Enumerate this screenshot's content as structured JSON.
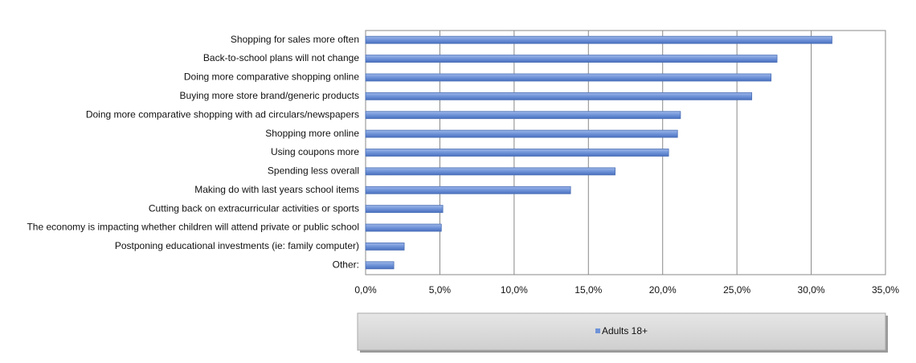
{
  "chart_data": {
    "type": "bar",
    "orientation": "horizontal",
    "categories": [
      "Shopping for sales more often",
      "Back-to-school plans will not change",
      "Doing more comparative shopping online",
      "Buying more store brand/generic products",
      "Doing more comparative shopping with ad circulars/newspapers",
      "Shopping more online",
      "Using coupons more",
      "Spending less overall",
      "Making do with last years school items",
      "Cutting back on extracurricular activities or sports",
      "The economy is impacting whether children will attend private or public school",
      "Postponing educational investments (ie: family computer)",
      "Other:"
    ],
    "series": [
      {
        "name": "Adults 18+",
        "color": "#6f93d8",
        "values": [
          31.4,
          27.7,
          27.3,
          26.0,
          21.2,
          21.0,
          20.4,
          16.8,
          13.8,
          5.2,
          5.1,
          2.6,
          1.9
        ]
      }
    ],
    "xlim": [
      0,
      35
    ],
    "xticks": [
      {
        "value": 0,
        "label": "0,0%"
      },
      {
        "value": 5,
        "label": "5,0%"
      },
      {
        "value": 10,
        "label": "10,0%"
      },
      {
        "value": 15,
        "label": "15,0%"
      },
      {
        "value": 20,
        "label": "20,0%"
      },
      {
        "value": 25,
        "label": "25,0%"
      },
      {
        "value": 30,
        "label": "30,0%"
      },
      {
        "value": 35,
        "label": "35,0%"
      }
    ],
    "grid": true,
    "legend": "bottom"
  }
}
